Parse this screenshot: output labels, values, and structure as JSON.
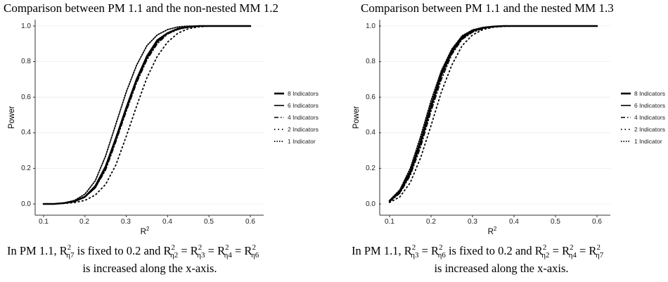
{
  "chart_data": [
    {
      "type": "line",
      "title": "Comparison between PM 1.1 and the non-nested MM 1.2",
      "xlabel": "R",
      "xlabel_sup": "2",
      "ylabel": "Power",
      "xlim": [
        0.1,
        0.6
      ],
      "ylim": [
        0.0,
        1.0
      ],
      "x_ticks": [
        "0.1",
        "0.2",
        "0.3",
        "0.4",
        "0.5",
        "0.6"
      ],
      "y_ticks": [
        "0.0",
        "0.2",
        "0.4",
        "0.6",
        "0.8",
        "1.0"
      ],
      "grid": true,
      "legend_position": "right",
      "x": [
        0.1,
        0.125,
        0.15,
        0.175,
        0.2,
        0.225,
        0.25,
        0.275,
        0.3,
        0.325,
        0.35,
        0.375,
        0.4,
        0.425,
        0.45,
        0.475,
        0.5,
        0.525,
        0.55,
        0.575,
        0.6
      ],
      "series": [
        {
          "name": "8 Indicators",
          "style": "solid-thick",
          "values": [
            0.0,
            0.0,
            0.005,
            0.015,
            0.04,
            0.1,
            0.21,
            0.37,
            0.54,
            0.7,
            0.83,
            0.92,
            0.96,
            0.985,
            0.995,
            1.0,
            1.0,
            1.0,
            1.0,
            1.0,
            1.0
          ]
        },
        {
          "name": "6 Indicators",
          "style": "solid",
          "values": [
            0.0,
            0.0,
            0.005,
            0.015,
            0.04,
            0.09,
            0.2,
            0.36,
            0.53,
            0.69,
            0.82,
            0.91,
            0.96,
            0.985,
            0.995,
            1.0,
            1.0,
            1.0,
            1.0,
            1.0,
            1.0
          ]
        },
        {
          "name": "4 Indicators",
          "style": "dashdot",
          "values": [
            0.0,
            0.0,
            0.005,
            0.014,
            0.038,
            0.09,
            0.19,
            0.35,
            0.52,
            0.68,
            0.81,
            0.9,
            0.955,
            0.98,
            0.993,
            0.998,
            1.0,
            1.0,
            1.0,
            1.0,
            1.0
          ]
        },
        {
          "name": "2 Indicators",
          "style": "dotted-sparse",
          "values": [
            0.0,
            0.0,
            0.003,
            0.008,
            0.02,
            0.05,
            0.11,
            0.22,
            0.38,
            0.55,
            0.71,
            0.83,
            0.91,
            0.96,
            0.985,
            0.995,
            1.0,
            1.0,
            1.0,
            1.0,
            1.0
          ]
        },
        {
          "name": "1 Indicator",
          "style": "dotted-dense",
          "values": [
            0.0,
            0.0,
            0.006,
            0.02,
            0.055,
            0.13,
            0.27,
            0.45,
            0.63,
            0.78,
            0.89,
            0.95,
            0.98,
            0.995,
            1.0,
            1.0,
            1.0,
            1.0,
            1.0,
            1.0,
            1.0
          ]
        }
      ]
    },
    {
      "type": "line",
      "title": "Comparison between PM 1.1 and the nested MM 1.3",
      "xlabel": "R",
      "xlabel_sup": "2",
      "ylabel": "Power",
      "xlim": [
        0.1,
        0.6
      ],
      "ylim": [
        0.0,
        1.0
      ],
      "x_ticks": [
        "0.1",
        "0.2",
        "0.3",
        "0.4",
        "0.5",
        "0.6"
      ],
      "y_ticks": [
        "0.0",
        "0.2",
        "0.4",
        "0.6",
        "0.8",
        "1.0"
      ],
      "grid": true,
      "legend_position": "right",
      "x": [
        0.1,
        0.125,
        0.15,
        0.175,
        0.2,
        0.225,
        0.25,
        0.275,
        0.3,
        0.325,
        0.35,
        0.375,
        0.4,
        0.425,
        0.45,
        0.5,
        0.55,
        0.6
      ],
      "series": [
        {
          "name": "8 Indicators",
          "style": "solid-thick",
          "values": [
            0.015,
            0.07,
            0.18,
            0.35,
            0.55,
            0.73,
            0.86,
            0.94,
            0.975,
            0.99,
            0.997,
            1.0,
            1.0,
            1.0,
            1.0,
            1.0,
            1.0,
            1.0
          ]
        },
        {
          "name": "6 Indicators",
          "style": "solid",
          "values": [
            0.015,
            0.065,
            0.17,
            0.34,
            0.54,
            0.72,
            0.85,
            0.93,
            0.97,
            0.988,
            0.996,
            1.0,
            1.0,
            1.0,
            1.0,
            1.0,
            1.0,
            1.0
          ]
        },
        {
          "name": "4 Indicators",
          "style": "dashdot",
          "values": [
            0.012,
            0.06,
            0.16,
            0.32,
            0.52,
            0.7,
            0.84,
            0.925,
            0.965,
            0.985,
            0.995,
            1.0,
            1.0,
            1.0,
            1.0,
            1.0,
            1.0,
            1.0
          ]
        },
        {
          "name": "2 Indicators",
          "style": "dotted-sparse",
          "values": [
            0.008,
            0.04,
            0.12,
            0.26,
            0.44,
            0.63,
            0.78,
            0.89,
            0.95,
            0.98,
            0.993,
            0.998,
            1.0,
            1.0,
            1.0,
            1.0,
            1.0,
            1.0
          ]
        },
        {
          "name": "1 Indicator",
          "style": "dotted-dense",
          "values": [
            0.02,
            0.08,
            0.2,
            0.38,
            0.58,
            0.75,
            0.87,
            0.945,
            0.978,
            0.992,
            0.998,
            1.0,
            1.0,
            1.0,
            1.0,
            1.0,
            1.0,
            1.0
          ]
        }
      ]
    }
  ],
  "captions": [
    {
      "line1_parts": [
        "In PM 1.1, R",
        "2",
        "η7",
        " is fixed to 0.2 and R",
        "2",
        "η2",
        " =  R",
        "2",
        "η3",
        " = R",
        "2",
        "η4",
        " = R",
        "2",
        "η6"
      ],
      "line2": "is increased along the x-axis."
    },
    {
      "line1_parts": [
        "In PM 1.1, R",
        "2",
        "η3",
        " = R",
        "2",
        "η6",
        " is fixed to 0.2 and R",
        "2",
        "η2",
        " = R",
        "2",
        "η4",
        " = R",
        "2",
        "η7"
      ],
      "line2": "is increased along the x-axis."
    }
  ]
}
